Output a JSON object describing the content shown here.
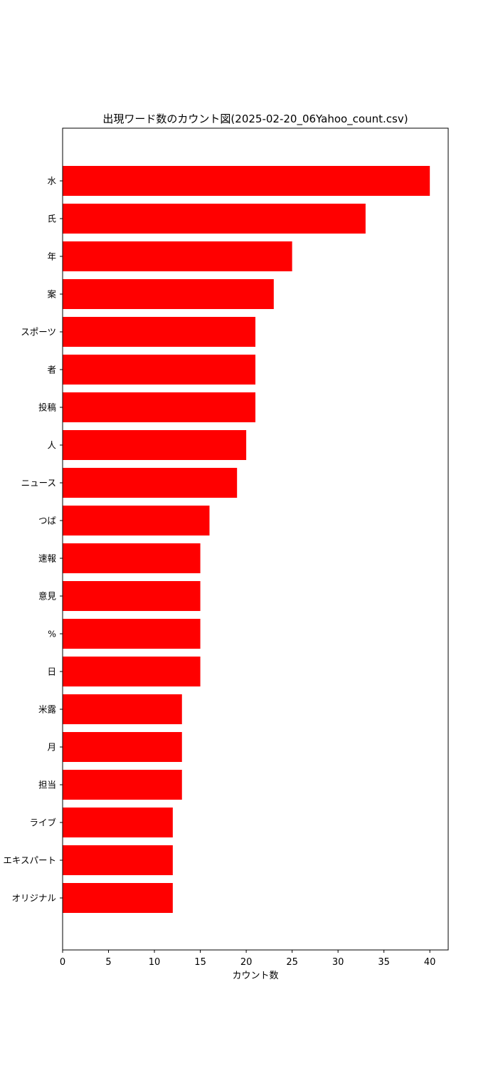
{
  "chart_data": {
    "type": "bar",
    "orientation": "horizontal",
    "title": "出現ワード数のカウント図(2025-02-20_06Yahoo_count.csv)",
    "xlabel": "カウント数",
    "ylabel": "",
    "xlim": [
      0,
      42
    ],
    "xticks": [
      0,
      5,
      10,
      15,
      20,
      25,
      30,
      35,
      40
    ],
    "grid": false,
    "bar_color": "#ff0000",
    "categories": [
      "水",
      "氏",
      "年",
      "案",
      "スポーツ",
      "者",
      "投稿",
      "人",
      "ニュース",
      "つば",
      "速報",
      "意見",
      "%",
      "日",
      "米露",
      "月",
      "担当",
      "ライブ",
      "エキスパート",
      "オリジナル"
    ],
    "values": [
      40,
      33,
      25,
      23,
      21,
      21,
      21,
      20,
      19,
      16,
      15,
      15,
      15,
      15,
      13,
      13,
      13,
      12,
      12,
      12
    ]
  }
}
